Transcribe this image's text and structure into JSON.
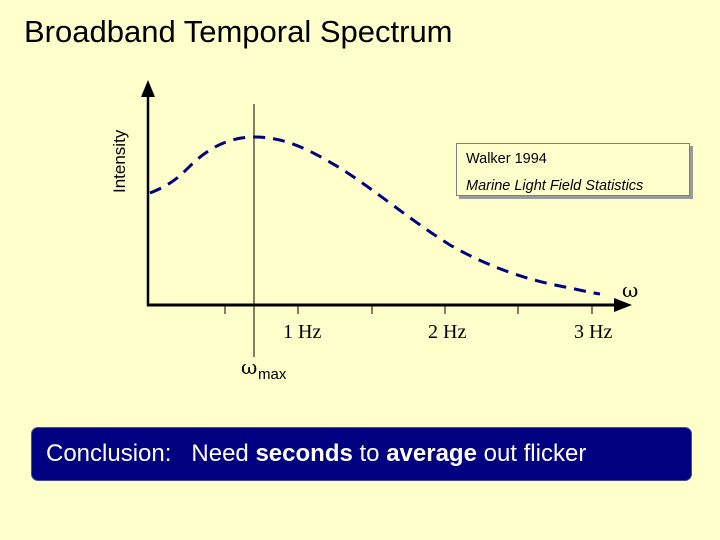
{
  "slide": {
    "title": "Broadband Temporal Spectrum"
  },
  "chart_data": {
    "type": "line",
    "ylabel": "Intensity",
    "x_axis_symbol": "ω",
    "x_ticks": [
      "1 Hz",
      "2 Hz",
      "3 Hz"
    ],
    "peak_marker": {
      "symbol": "ω",
      "subscript": "max"
    },
    "curve_style": "dashed",
    "grid": false,
    "legend": "none"
  },
  "reference": {
    "author": "Walker 1994",
    "source": "Marine Light Field Statistics"
  },
  "conclusion": {
    "prefix": "Conclusion:   Need ",
    "bold1": "seconds",
    "mid": " to ",
    "bold2": "average",
    "suffix": " out flicker"
  },
  "colors": {
    "background": "#ffffcc",
    "curve": "#000080",
    "banner": "#000080"
  }
}
